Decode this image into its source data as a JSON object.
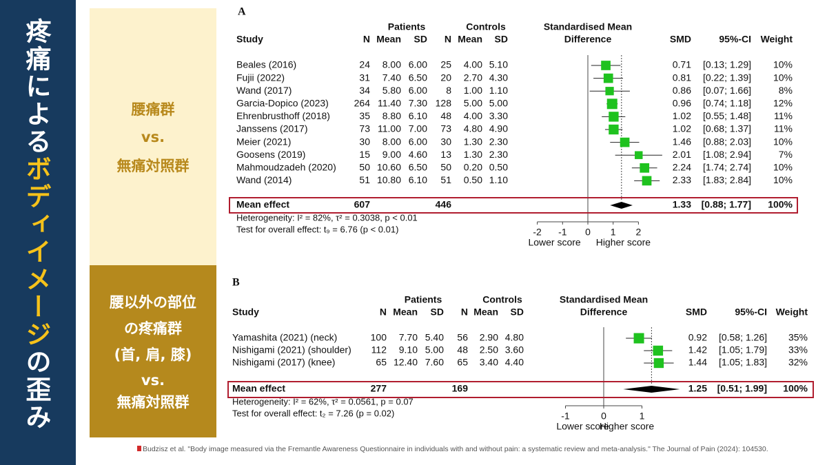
{
  "sidebar": {
    "title_parts": [
      "疼痛による",
      "ボディイメージ",
      "の歪み"
    ]
  },
  "panels": [
    {
      "lines": [
        "腰痛群",
        "vs.",
        "無痛対照群"
      ]
    },
    {
      "lines": [
        "腰以外の部位",
        "の疼痛群",
        "(首, 肩, 膝)",
        "vs.",
        "無痛対照群"
      ]
    }
  ],
  "citation": "Budzisz et al. \"Body image measured via the Fremantle Awareness Questionnaire in individuals with and without pain: a systematic review and meta-analysis.\" The Journal of Pain (2024): 104530.",
  "chart_data": [
    {
      "type": "forest",
      "label": "A",
      "group_headers": [
        "Patients",
        "Controls"
      ],
      "columns": [
        "Study",
        "N",
        "Mean",
        "SD",
        "N",
        "Mean",
        "SD",
        "SMD",
        "95%-CI",
        "Weight"
      ],
      "effect_header": [
        "Standardised Mean",
        "Difference"
      ],
      "studies": [
        "Beales (2016)",
        "Fujii (2022)",
        "Wand (2017)",
        "Garcia-Dopico (2023)",
        "Ehrenbrusthoff (2018)",
        "Janssens (2017)",
        "Meier (2021)",
        "Goosens (2019)",
        "Mahmoudzadeh (2020)",
        "Wand (2014)"
      ],
      "table": [
        [
          "24",
          "8.00",
          "6.00",
          "25",
          "4.00",
          "5.10"
        ],
        [
          "31",
          "7.40",
          "6.50",
          "20",
          "2.70",
          "4.30"
        ],
        [
          "34",
          "5.80",
          "6.00",
          "8",
          "1.00",
          "1.10"
        ],
        [
          "264",
          "11.40",
          "7.30",
          "128",
          "5.00",
          "5.00"
        ],
        [
          "35",
          "8.80",
          "6.10",
          "48",
          "4.00",
          "3.30"
        ],
        [
          "73",
          "11.00",
          "7.00",
          "73",
          "4.80",
          "4.90"
        ],
        [
          "30",
          "8.00",
          "6.00",
          "30",
          "1.30",
          "2.30"
        ],
        [
          "15",
          "9.00",
          "4.60",
          "13",
          "1.30",
          "2.30"
        ],
        [
          "50",
          "10.60",
          "6.50",
          "50",
          "0.20",
          "0.50"
        ],
        [
          "51",
          "10.80",
          "6.10",
          "51",
          "0.50",
          "1.10"
        ]
      ],
      "values": [
        0.71,
        0.81,
        0.86,
        0.96,
        1.02,
        1.02,
        1.46,
        2.01,
        2.24,
        2.33
      ],
      "ci_low": [
        0.13,
        0.22,
        0.07,
        0.74,
        0.55,
        0.68,
        0.88,
        1.08,
        1.74,
        1.83
      ],
      "ci_high": [
        1.29,
        1.39,
        1.66,
        1.18,
        1.48,
        1.37,
        2.03,
        2.94,
        2.74,
        2.84
      ],
      "ci_labels": [
        "[0.13; 1.29]",
        "[0.22; 1.39]",
        "[0.07; 1.66]",
        "[0.74; 1.18]",
        "[0.55; 1.48]",
        "[0.68; 1.37]",
        "[0.88; 2.03]",
        "[1.08; 2.94]",
        "[1.74; 2.74]",
        "[1.83; 2.84]"
      ],
      "weights": [
        10,
        10,
        8,
        12,
        11,
        11,
        10,
        7,
        10,
        10
      ],
      "weight_labels": [
        "10%",
        "10%",
        "8%",
        "12%",
        "11%",
        "11%",
        "10%",
        "7%",
        "10%",
        "10%"
      ],
      "summary": {
        "name": "Mean effect",
        "patients_n": 607,
        "controls_n": 446,
        "value": 1.33,
        "ci_low": 0.88,
        "ci_high": 1.77,
        "ci_label": "[0.88; 1.77]",
        "weight": 100,
        "weight_label": "100%"
      },
      "heterogeneity": "Heterogeneity: I² = 82%, τ² = 0.3038, p < 0.01",
      "overall_test": "Test for overall effect: t₉ = 6.76 (p < 0.01)",
      "xlim": [
        -2,
        2
      ],
      "xticks": [
        -2,
        -1,
        0,
        1,
        2
      ],
      "xlabels": [
        "Lower score",
        "Higher score"
      ],
      "color": "#1fc21f"
    },
    {
      "type": "forest",
      "label": "B",
      "group_headers": [
        "Patients",
        "Controls"
      ],
      "columns": [
        "Study",
        "N",
        "Mean",
        "SD",
        "N",
        "Mean",
        "SD",
        "SMD",
        "95%-CI",
        "Weight"
      ],
      "effect_header": [
        "Standardised Mean",
        "Difference"
      ],
      "studies": [
        "Yamashita (2021) (neck)",
        "Nishigami (2021) (shoulder)",
        "Nishigami (2017) (knee)"
      ],
      "table": [
        [
          "100",
          "7.70",
          "5.40",
          "56",
          "2.90",
          "4.80"
        ],
        [
          "112",
          "9.10",
          "5.00",
          "48",
          "2.50",
          "3.60"
        ],
        [
          "65",
          "12.40",
          "7.60",
          "65",
          "3.40",
          "4.40"
        ]
      ],
      "values": [
        0.92,
        1.42,
        1.44
      ],
      "ci_low": [
        0.58,
        1.05,
        1.05
      ],
      "ci_high": [
        1.26,
        1.79,
        1.83
      ],
      "ci_labels": [
        "[0.58; 1.26]",
        "[1.05; 1.79]",
        "[1.05; 1.83]"
      ],
      "weights": [
        35,
        33,
        32
      ],
      "weight_labels": [
        "35%",
        "33%",
        "32%"
      ],
      "summary": {
        "name": "Mean effect",
        "patients_n": 277,
        "controls_n": 169,
        "value": 1.25,
        "ci_low": 0.51,
        "ci_high": 1.99,
        "ci_label": "[0.51; 1.99]",
        "weight": 100,
        "weight_label": "100%"
      },
      "heterogeneity": "Heterogeneity: I² = 62%, τ² = 0.0561, p = 0.07",
      "overall_test": "Test for overall effect: t₂ = 7.26 (p = 0.02)",
      "xlim": [
        -1,
        1
      ],
      "xticks": [
        -1,
        0,
        1
      ],
      "xlabels": [
        "Lower score",
        "Higher score"
      ],
      "color": "#1fc21f"
    }
  ]
}
